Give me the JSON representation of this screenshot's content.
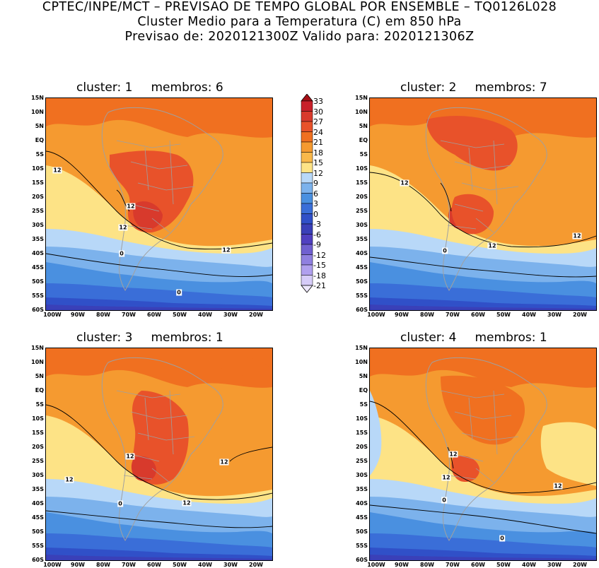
{
  "header": {
    "line1": "CPTEC/INPE/MCT – PREVISAO DE TEMPO GLOBAL POR ENSEMBLE – TQ0126L028",
    "line2": "Cluster Medio para a Temperatura (C) em 850 hPa",
    "line3": "Previsao de: 2020121300Z   Valido para: 2020121306Z"
  },
  "panels": [
    {
      "cluster_label": "cluster:",
      "cluster": "1",
      "members_label": "membros:",
      "members": "6",
      "contour_labels": [
        "12",
        "12",
        "12",
        "12",
        "0",
        "0"
      ]
    },
    {
      "cluster_label": "cluster:",
      "cluster": "2",
      "members_label": "membros:",
      "members": "7",
      "contour_labels": [
        "12",
        "12",
        "12",
        "0"
      ]
    },
    {
      "cluster_label": "cluster:",
      "cluster": "3",
      "members_label": "membros:",
      "members": "1",
      "contour_labels": [
        "12",
        "12",
        "12",
        "12",
        "0"
      ]
    },
    {
      "cluster_label": "cluster:",
      "cluster": "4",
      "members_label": "membros:",
      "members": "1",
      "contour_labels": [
        "12",
        "12",
        "12",
        "0",
        "0"
      ]
    }
  ],
  "axes": {
    "lat_labels": [
      "15N",
      "10N",
      "5N",
      "EQ",
      "5S",
      "10S",
      "15S",
      "20S",
      "25S",
      "30S",
      "35S",
      "40S",
      "45S",
      "50S",
      "55S",
      "60S"
    ],
    "lon_labels": [
      "100W",
      "90W",
      "80W",
      "70W",
      "60W",
      "50W",
      "40W",
      "30W",
      "20W"
    ]
  },
  "colorbar": {
    "levels": [
      "33",
      "30",
      "27",
      "24",
      "21",
      "18",
      "15",
      "12",
      "9",
      "6",
      "3",
      "0",
      "-3",
      "-6",
      "-9",
      "-12",
      "-15",
      "-18",
      "-21"
    ],
    "colors": [
      "#a50f15",
      "#c8202a",
      "#d83a2c",
      "#e8522a",
      "#f07020",
      "#f59a30",
      "#f9b84a",
      "#fde386",
      "#b8d8f8",
      "#7cb2ec",
      "#4a90e0",
      "#3a6ed8",
      "#3050c8",
      "#3a40b8",
      "#5040c0",
      "#7060d0",
      "#9080e0",
      "#b0a0ee",
      "#d6ccf8",
      "#eee8fc"
    ]
  },
  "palette": {
    "land_border": "#a0a0a0",
    "contour": "#000000"
  }
}
